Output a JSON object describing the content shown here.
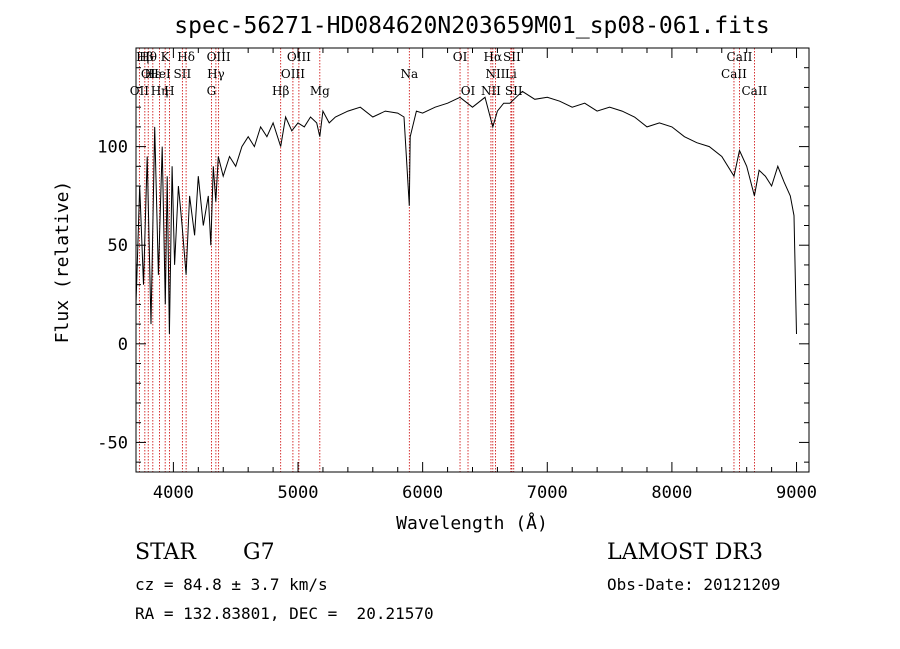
{
  "chart_data": {
    "type": "line",
    "title": "spec-56271-HD084620N203659M01_sp08-061.fits",
    "xlabel": "Wavelength (Å)",
    "ylabel": "Flux (relative)",
    "xlim": [
      3700,
      9100
    ],
    "ylim": [
      -65,
      150
    ],
    "xticks": [
      4000,
      5000,
      6000,
      7000,
      8000,
      9000
    ],
    "yticks": [
      -50,
      0,
      50,
      100
    ],
    "grid": false,
    "series": [
      {
        "name": "flux",
        "x": [
          3700,
          3730,
          3760,
          3790,
          3820,
          3850,
          3880,
          3910,
          3935,
          3950,
          3968,
          3990,
          4010,
          4040,
          4070,
          4102,
          4130,
          4170,
          4200,
          4240,
          4280,
          4300,
          4320,
          4340,
          4360,
          4400,
          4450,
          4500,
          4550,
          4600,
          4650,
          4700,
          4750,
          4800,
          4861,
          4900,
          4950,
          5000,
          5050,
          5100,
          5150,
          5175,
          5200,
          5250,
          5300,
          5400,
          5500,
          5600,
          5700,
          5800,
          5850,
          5893,
          5900,
          5950,
          6000,
          6100,
          6200,
          6300,
          6400,
          6500,
          6563,
          6600,
          6650,
          6700,
          6750,
          6800,
          6900,
          7000,
          7100,
          7200,
          7300,
          7400,
          7500,
          7600,
          7700,
          7800,
          7900,
          8000,
          8100,
          8200,
          8300,
          8400,
          8498,
          8542,
          8600,
          8662,
          8700,
          8750,
          8800,
          8850,
          8900,
          8950,
          8980,
          9000
        ],
        "y": [
          20,
          80,
          30,
          95,
          10,
          110,
          35,
          100,
          20,
          85,
          5,
          90,
          40,
          80,
          60,
          35,
          75,
          55,
          85,
          60,
          75,
          50,
          90,
          72,
          95,
          85,
          95,
          90,
          100,
          105,
          100,
          110,
          105,
          112,
          100,
          115,
          108,
          112,
          110,
          115,
          112,
          105,
          118,
          112,
          115,
          118,
          120,
          115,
          118,
          117,
          115,
          70,
          105,
          118,
          117,
          120,
          122,
          125,
          120,
          125,
          110,
          118,
          122,
          122,
          125,
          128,
          124,
          125,
          123,
          120,
          122,
          118,
          120,
          118,
          115,
          110,
          112,
          110,
          105,
          102,
          100,
          95,
          85,
          98,
          90,
          75,
          88,
          85,
          80,
          90,
          82,
          75,
          65,
          5
        ]
      }
    ],
    "lines": [
      {
        "label": "Hβ",
        "x": 3771,
        "row": 1
      },
      {
        "label": "OI",
        "x": 3798,
        "row": 2
      },
      {
        "label": "OII",
        "x": 3727,
        "row": 3
      },
      {
        "label": "Hθ",
        "x": 3797,
        "row": 1
      },
      {
        "label": "Hε",
        "x": 3835,
        "row": 2
      },
      {
        "label": "Hη",
        "x": 3889,
        "row": 3
      },
      {
        "label": "K",
        "x": 3934,
        "row": 1
      },
      {
        "label": "HeI",
        "x": 3889,
        "row": 2
      },
      {
        "label": "H",
        "x": 3968,
        "row": 3
      },
      {
        "label": "Hδ",
        "x": 4102,
        "row": 1
      },
      {
        "label": "SII",
        "x": 4072,
        "row": 2
      },
      {
        "label": "OIII",
        "x": 4363,
        "row": 1
      },
      {
        "label": "Hγ",
        "x": 4341,
        "row": 2
      },
      {
        "label": "G",
        "x": 4305,
        "row": 3
      },
      {
        "label": "Hβ",
        "x": 4861,
        "row": 3
      },
      {
        "label": "OIII",
        "x": 5007,
        "row": 1
      },
      {
        "label": "OIII",
        "x": 4959,
        "row": 2
      },
      {
        "label": "Mg",
        "x": 5175,
        "row": 3
      },
      {
        "label": "Na",
        "x": 5893,
        "row": 2
      },
      {
        "label": "OI",
        "x": 6300,
        "row": 1
      },
      {
        "label": "OI",
        "x": 6364,
        "row": 3
      },
      {
        "label": "Hα",
        "x": 6563,
        "row": 1
      },
      {
        "label": "SII",
        "x": 6716,
        "row": 1
      },
      {
        "label": "NII",
        "x": 6584,
        "row": 2
      },
      {
        "label": "Li",
        "x": 6708,
        "row": 2
      },
      {
        "label": "NII",
        "x": 6548,
        "row": 3
      },
      {
        "label": "SII",
        "x": 6731,
        "row": 3
      },
      {
        "label": "CaII",
        "x": 8542,
        "row": 1
      },
      {
        "label": "CaII",
        "x": 8498,
        "row": 2
      },
      {
        "label": "CaII",
        "x": 8662,
        "row": 3
      }
    ]
  },
  "info": {
    "class": "STAR",
    "subclass": "G7",
    "cz": "cz = 84.8 ± 3.7 km/s",
    "radec": "RA = 132.83801, DEC =  20.21570",
    "survey": "LAMOST DR3",
    "obs_date": "Obs-Date: 20121209"
  },
  "colors": {
    "flux": "#000000",
    "lines": "#cc0000"
  }
}
